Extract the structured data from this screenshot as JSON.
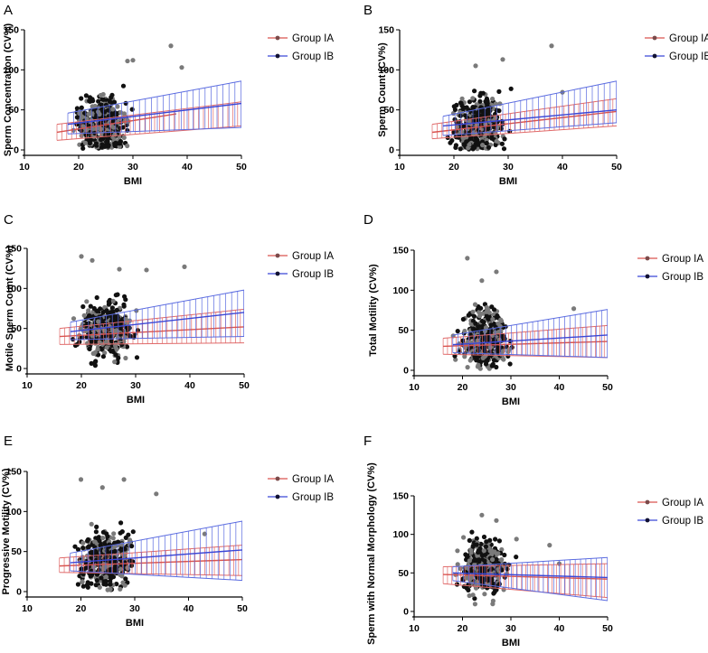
{
  "figure": {
    "legend": [
      {
        "name": "Group IA",
        "color": "#d9534f",
        "marker_color": "#7a4a4a"
      },
      {
        "name": "Group IB",
        "color": "#3b47d6",
        "marker_color": "#111133"
      }
    ],
    "point_colors": {
      "black": "#111111",
      "gray": "#7a7a7a"
    },
    "ci_colors": {
      "IA": "#e06a6a",
      "IB": "#5a6be0"
    }
  },
  "chart_data": [
    {
      "id": "A",
      "letter": "A",
      "type": "scatter",
      "xlabel": "BMI",
      "ylabel": "Sperm Concentration (CV%)",
      "xlim": [
        10,
        50
      ],
      "ylim": [
        0,
        150
      ],
      "xticks": [
        10,
        20,
        30,
        40,
        50
      ],
      "yticks": [
        0,
        50,
        100,
        150
      ],
      "series": [
        {
          "name": "Group IA",
          "x": [
            16,
            38
          ],
          "y": [
            22,
            45
          ],
          "ci_low": [
            12,
            30
          ],
          "ci_high": [
            32,
            60
          ],
          "ci_x": [
            16,
            50
          ],
          "ci_low_end": [
            16,
            36
          ],
          "ci_high_end": [
            28,
            78
          ]
        },
        {
          "name": "Group IB",
          "x": [
            18,
            50
          ],
          "y": [
            32,
            58
          ],
          "ci_low": [
            20,
            28
          ],
          "ci_high": [
            46,
            86
          ],
          "ci_x": [
            18,
            50
          ]
        }
      ],
      "outliers": [
        [
          37,
          130
        ],
        [
          39,
          103
        ],
        [
          30,
          112
        ],
        [
          29,
          111
        ]
      ]
    },
    {
      "id": "B",
      "letter": "B",
      "type": "scatter",
      "xlabel": "BMI",
      "ylabel": "Sperm Count (CV%)",
      "xlim": [
        10,
        50
      ],
      "ylim": [
        0,
        150
      ],
      "xticks": [
        10,
        20,
        30,
        40,
        50
      ],
      "yticks": [
        0,
        50,
        100,
        150
      ],
      "series": [
        {
          "name": "Group IA",
          "x": [
            16,
            50
          ],
          "y": [
            22,
            48
          ],
          "ci_low": [
            14,
            30
          ],
          "ci_high": [
            32,
            64
          ],
          "ci_x": [
            16,
            50
          ]
        },
        {
          "name": "Group IB",
          "x": [
            18,
            50
          ],
          "y": [
            30,
            50
          ],
          "ci_low": [
            18,
            34
          ],
          "ci_high": [
            42,
            86
          ],
          "ci_x": [
            18,
            50
          ]
        }
      ],
      "outliers": [
        [
          38,
          130
        ],
        [
          29,
          113
        ],
        [
          24,
          105
        ],
        [
          40,
          72
        ]
      ]
    },
    {
      "id": "C",
      "letter": "C",
      "type": "scatter",
      "xlabel": "BMI",
      "ylabel": "Motile Sperm Count (CV%)",
      "xlim": [
        10,
        50
      ],
      "ylim": [
        0,
        150
      ],
      "xticks": [
        10,
        20,
        30,
        40,
        50
      ],
      "yticks": [
        0,
        50,
        100,
        150
      ],
      "series": [
        {
          "name": "Group IA",
          "x": [
            16,
            50
          ],
          "y": [
            40,
            52
          ],
          "ci_low": [
            30,
            32
          ],
          "ci_high": [
            50,
            74
          ],
          "ci_x": [
            16,
            50
          ]
        },
        {
          "name": "Group IB",
          "x": [
            18,
            50
          ],
          "y": [
            46,
            70
          ],
          "ci_low": [
            36,
            40
          ],
          "ci_high": [
            58,
            98
          ],
          "ci_x": [
            18,
            50
          ]
        }
      ],
      "outliers": [
        [
          20,
          140
        ],
        [
          22,
          135
        ],
        [
          39,
          127
        ],
        [
          27,
          124
        ],
        [
          32,
          123
        ]
      ]
    },
    {
      "id": "D",
      "letter": "D",
      "type": "scatter",
      "xlabel": "BMI",
      "ylabel": "Total Motility (CV%)",
      "xlim": [
        10,
        50
      ],
      "ylim": [
        0,
        150
      ],
      "xticks": [
        10,
        20,
        30,
        40,
        50
      ],
      "yticks": [
        0,
        50,
        100,
        150
      ],
      "series": [
        {
          "name": "Group IA",
          "x": [
            16,
            50
          ],
          "y": [
            30,
            36
          ],
          "ci_low": [
            20,
            16
          ],
          "ci_high": [
            40,
            56
          ],
          "ci_x": [
            16,
            50
          ]
        },
        {
          "name": "Group IB",
          "x": [
            18,
            50
          ],
          "y": [
            32,
            44
          ],
          "ci_low": [
            22,
            16
          ],
          "ci_high": [
            44,
            76
          ],
          "ci_x": [
            18,
            50
          ]
        }
      ],
      "outliers": [
        [
          21,
          140
        ],
        [
          27,
          123
        ],
        [
          24,
          112
        ],
        [
          43,
          77
        ]
      ]
    },
    {
      "id": "E",
      "letter": "E",
      "type": "scatter",
      "xlabel": "BMI",
      "ylabel": "Progressive Motility (CV%)",
      "xlim": [
        10,
        50
      ],
      "ylim": [
        0,
        150
      ],
      "xticks": [
        10,
        20,
        30,
        40,
        50
      ],
      "yticks": [
        0,
        50,
        100,
        150
      ],
      "series": [
        {
          "name": "Group IA",
          "x": [
            16,
            50
          ],
          "y": [
            32,
            40
          ],
          "ci_low": [
            24,
            20
          ],
          "ci_high": [
            42,
            58
          ],
          "ci_x": [
            16,
            50
          ]
        },
        {
          "name": "Group IB",
          "x": [
            18,
            50
          ],
          "y": [
            36,
            52
          ],
          "ci_low": [
            26,
            14
          ],
          "ci_high": [
            48,
            88
          ],
          "ci_x": [
            18,
            50
          ]
        }
      ],
      "outliers": [
        [
          20,
          140
        ],
        [
          28,
          140
        ],
        [
          24,
          130
        ],
        [
          34,
          122
        ],
        [
          43,
          72
        ]
      ]
    },
    {
      "id": "F",
      "letter": "F",
      "type": "scatter",
      "xlabel": "BMI",
      "ylabel": "Sperm with Normal Morphology (CV%)",
      "xlim": [
        10,
        50
      ],
      "ylim": [
        0,
        150
      ],
      "xticks": [
        10,
        20,
        30,
        40,
        50
      ],
      "yticks": [
        0,
        50,
        100,
        150
      ],
      "series": [
        {
          "name": "Group IA",
          "x": [
            16,
            50
          ],
          "y": [
            48,
            42
          ],
          "ci_low": [
            36,
            18
          ],
          "ci_high": [
            58,
            62
          ],
          "ci_x": [
            16,
            50
          ]
        },
        {
          "name": "Group IB",
          "x": [
            18,
            50
          ],
          "y": [
            50,
            44
          ],
          "ci_low": [
            40,
            14
          ],
          "ci_high": [
            58,
            70
          ],
          "ci_x": [
            18,
            50
          ]
        }
      ],
      "outliers": [
        [
          24,
          125
        ],
        [
          27,
          118
        ],
        [
          40,
          62
        ],
        [
          38,
          86
        ]
      ]
    }
  ]
}
